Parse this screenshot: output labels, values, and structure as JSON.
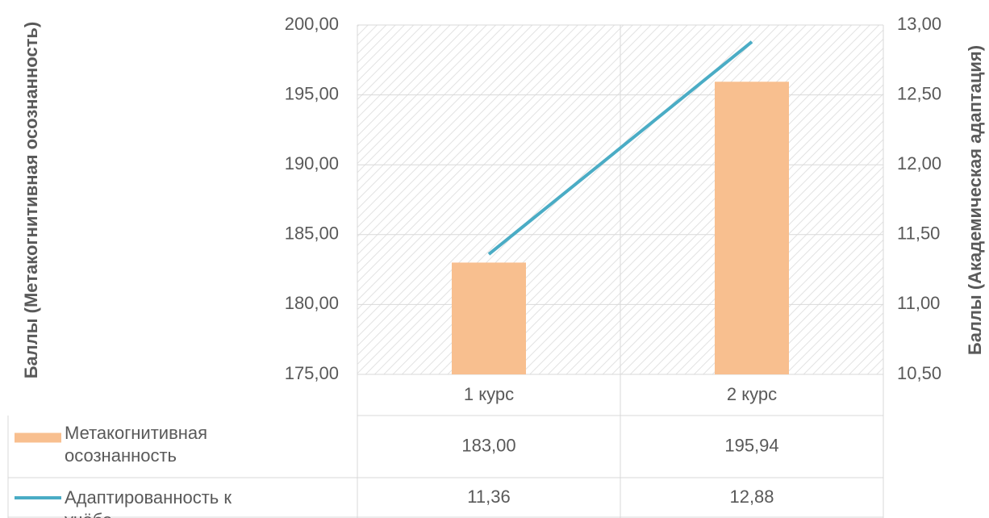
{
  "chart_data": {
    "type": "bar-line",
    "ylabel": "Баллы (Метакогнитивная осознанность)",
    "y2label": "Баллы (Академическая адаптация)",
    "categories": [
      "1 курс",
      "2 курс"
    ],
    "series": [
      {
        "name": "Метакогнитивная осознанность",
        "type": "bar",
        "color": "#f8bf8f",
        "axis": "y",
        "values": [
          183.0,
          195.94
        ],
        "value_labels": [
          "183,00",
          "195,94"
        ]
      },
      {
        "name": "Адаптированность к учёбе",
        "type": "line",
        "color": "#4aacc5",
        "axis": "y2",
        "values": [
          11.36,
          12.88
        ],
        "value_labels": [
          "11,36",
          "12,88"
        ]
      }
    ],
    "ylim": [
      175,
      200
    ],
    "yticks": [
      {
        "value": 175,
        "label": "175,00"
      },
      {
        "value": 180,
        "label": "180,00"
      },
      {
        "value": 185,
        "label": "185,00"
      },
      {
        "value": 190,
        "label": "190,00"
      },
      {
        "value": 195,
        "label": "195,00"
      },
      {
        "value": 200,
        "label": "200,00"
      }
    ],
    "y2lim": [
      10.5,
      13
    ],
    "y2ticks": [
      {
        "value": 10.5,
        "label": "10,50"
      },
      {
        "value": 11,
        "label": "11,00"
      },
      {
        "value": 11.5,
        "label": "11,50"
      },
      {
        "value": 12,
        "label": "12,00"
      },
      {
        "value": 12.5,
        "label": "12,50"
      },
      {
        "value": 13,
        "label": "13,00"
      }
    ],
    "grid": true,
    "data_table": true
  }
}
